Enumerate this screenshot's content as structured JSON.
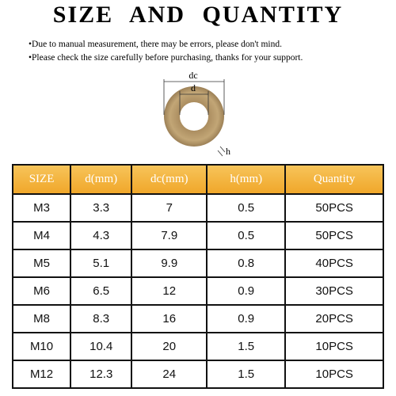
{
  "header": {
    "title": "SIZE AND QUANTITY",
    "notes": [
      "•Due to manual measurement, there may be errors, please don't mind.",
      "•Please check the size carefully before purchasing, thanks for your support."
    ]
  },
  "diagram": {
    "labels": {
      "outer": "dc",
      "inner": "d",
      "height": "h"
    }
  },
  "table": {
    "columns": [
      "SIZE",
      "d(mm)",
      "dc(mm)",
      "h(mm)",
      "Quantity"
    ],
    "rows": [
      [
        "M3",
        "3.3",
        "7",
        "0.5",
        "50PCS"
      ],
      [
        "M4",
        "4.3",
        "7.9",
        "0.5",
        "50PCS"
      ],
      [
        "M5",
        "5.1",
        "9.9",
        "0.8",
        "40PCS"
      ],
      [
        "M6",
        "6.5",
        "12",
        "0.9",
        "30PCS"
      ],
      [
        "M8",
        "8.3",
        "16",
        "0.9",
        "20PCS"
      ],
      [
        "M10",
        "10.4",
        "20",
        "1.5",
        "10PCS"
      ],
      [
        "M12",
        "12.3",
        "24",
        "1.5",
        "10PCS"
      ]
    ]
  }
}
